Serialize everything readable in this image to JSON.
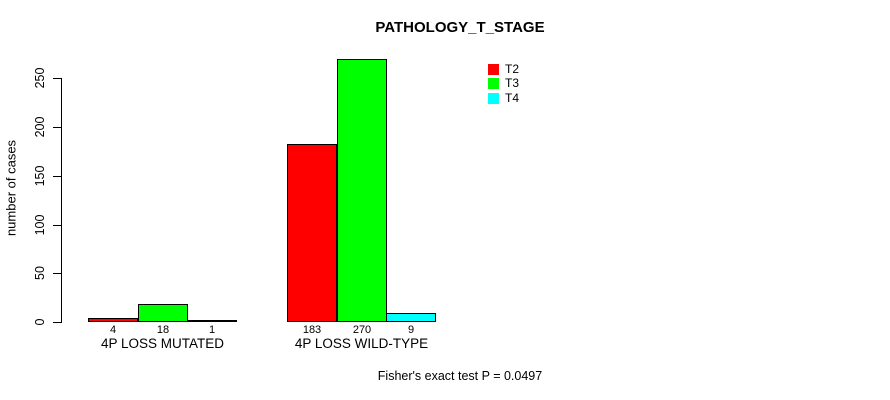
{
  "chart_data": {
    "type": "bar",
    "title": "PATHOLOGY_T_STAGE",
    "ylabel": "number of cases",
    "xlabel": "",
    "categories": [
      "4P LOSS MUTATED",
      "4P LOSS WILD-TYPE"
    ],
    "series": [
      {
        "name": "T2",
        "color": "#FF0000",
        "values": [
          4,
          183
        ]
      },
      {
        "name": "T3",
        "color": "#00FF00",
        "values": [
          18,
          270
        ]
      },
      {
        "name": "T4",
        "color": "#00FFFF",
        "values": [
          1,
          9
        ]
      }
    ],
    "yticks": [
      0,
      50,
      100,
      150,
      200,
      250
    ],
    "ylim": [
      0,
      270
    ],
    "grid": false,
    "legend_position": "upper-right",
    "legend_box": false,
    "bar_border_color": "#000000",
    "annotation": "Fisher's exact test P = 0.0497"
  }
}
